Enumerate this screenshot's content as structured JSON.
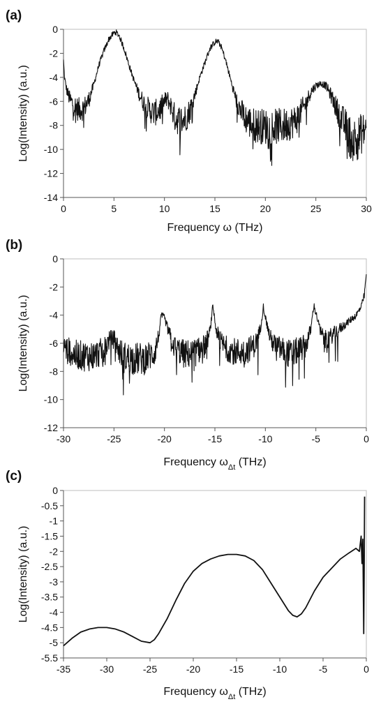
{
  "chart_data": [
    {
      "panel_label": "(a)",
      "type": "line",
      "xlabel": "Frequency ω (THz)",
      "ylabel": "Log(Intensity) (a.u.)",
      "xlim": [
        0,
        30
      ],
      "ylim": [
        -14,
        0
      ],
      "x_ticks": [
        0,
        5,
        10,
        15,
        20,
        25,
        30
      ],
      "y_ticks": [
        0,
        -2,
        -4,
        -6,
        -8,
        -10,
        -12,
        -14
      ],
      "x_tick_labels": [
        "0",
        "5",
        "10",
        "15",
        "20",
        "25",
        "30"
      ],
      "y_tick_labels": [
        "0",
        "-2",
        "-4",
        "-6",
        "-8",
        "-10",
        "-12",
        "-14"
      ],
      "grid": false,
      "noise": true,
      "series": [
        {
          "x": [
            0,
            0.1,
            0.3,
            0.6,
            1.0,
            1.5,
            2.0,
            2.5,
            3.0,
            3.5,
            4.0,
            4.5,
            5.0,
            5.2,
            5.5,
            6.0,
            6.5,
            7.0,
            7.5,
            8.0,
            8.5,
            9.0,
            9.5,
            10.0,
            10.3,
            10.6,
            11.0,
            11.5,
            12.0,
            12.5,
            13.0,
            13.5,
            14.0,
            14.5,
            15.0,
            15.3,
            15.6,
            16.0,
            16.5,
            17.0,
            17.5,
            18.0,
            18.5,
            19.0,
            20.0,
            21.0,
            22.0,
            23.0,
            24.0,
            24.5,
            25.0,
            25.5,
            26.0,
            26.5,
            27.0,
            27.5,
            28.0,
            28.5,
            29.0,
            29.5,
            30.0
          ],
          "y": [
            -2.6,
            -4.0,
            -5.0,
            -5.8,
            -6.3,
            -6.7,
            -6.6,
            -5.9,
            -4.6,
            -3.0,
            -1.8,
            -0.8,
            -0.3,
            -0.25,
            -0.5,
            -1.6,
            -3.0,
            -4.3,
            -5.4,
            -6.2,
            -6.7,
            -7.0,
            -6.7,
            -6.0,
            -5.8,
            -6.3,
            -7.3,
            -7.6,
            -7.5,
            -6.8,
            -5.5,
            -4.0,
            -2.8,
            -1.6,
            -1.05,
            -1.0,
            -1.4,
            -2.4,
            -4.0,
            -5.6,
            -6.7,
            -7.4,
            -7.8,
            -8.0,
            -8.1,
            -8.1,
            -8.0,
            -7.6,
            -6.2,
            -5.2,
            -4.7,
            -4.5,
            -4.7,
            -5.5,
            -6.5,
            -7.4,
            -8.2,
            -9.2,
            -9.2,
            -8.7,
            -8.3
          ]
        }
      ]
    },
    {
      "panel_label": "(b)",
      "type": "line",
      "xlabel": "Frequency ω",
      "xlabel_sub": "Δt",
      "xlabel_unit": " (THz)",
      "ylabel": "Log(Intensity) (a.u.)",
      "xlim": [
        -30,
        0
      ],
      "ylim": [
        -12,
        0
      ],
      "x_ticks": [
        -30,
        -25,
        -20,
        -15,
        -10,
        -5,
        0
      ],
      "y_ticks": [
        0,
        -2,
        -4,
        -6,
        -8,
        -10,
        -12
      ],
      "x_tick_labels": [
        "-30",
        "-25",
        "-20",
        "-15",
        "-10",
        "-5",
        "0"
      ],
      "y_tick_labels": [
        "0",
        "-2",
        "-4",
        "-6",
        "-8",
        "-10",
        "-12"
      ],
      "grid": false,
      "noise": true,
      "series": [
        {
          "x": [
            -30,
            -29.5,
            -29,
            -28,
            -27,
            -26,
            -25.5,
            -25,
            -24.5,
            -24,
            -23,
            -22,
            -21,
            -20.6,
            -20.3,
            -20,
            -19.5,
            -19,
            -18,
            -17,
            -16,
            -15.5,
            -15.2,
            -14.9,
            -14.5,
            -14,
            -13,
            -12,
            -11,
            -10.5,
            -10.2,
            -9.9,
            -9.5,
            -9,
            -8,
            -7.5,
            -7,
            -6,
            -5.5,
            -5.2,
            -4.9,
            -4.5,
            -4,
            -3,
            -2,
            -1,
            -0.5,
            -0.2,
            0
          ],
          "y": [
            -6.2,
            -6.5,
            -6.8,
            -6.9,
            -6.9,
            -6.5,
            -5.8,
            -5.7,
            -6.5,
            -7.0,
            -7.1,
            -7.1,
            -6.7,
            -5.6,
            -4.0,
            -4.2,
            -5.4,
            -6.3,
            -6.8,
            -6.7,
            -6.2,
            -5.3,
            -3.3,
            -5.0,
            -5.8,
            -6.3,
            -6.6,
            -6.6,
            -6.1,
            -5.0,
            -3.4,
            -4.5,
            -5.7,
            -6.2,
            -6.6,
            -6.8,
            -6.6,
            -6.2,
            -5.0,
            -3.3,
            -4.1,
            -5.3,
            -5.8,
            -5.2,
            -4.6,
            -4.0,
            -3.4,
            -2.6,
            -1.0
          ]
        }
      ]
    },
    {
      "panel_label": "(c)",
      "type": "line",
      "xlabel": "Frequency ω",
      "xlabel_sub": "Δt",
      "xlabel_unit": " (THz)",
      "ylabel": "Log(Intensity) (a.u.)",
      "xlim": [
        -35,
        0
      ],
      "ylim": [
        -5.5,
        0
      ],
      "x_ticks": [
        -35,
        -30,
        -25,
        -20,
        -15,
        -10,
        -5,
        0
      ],
      "y_ticks": [
        0,
        -0.5,
        -1,
        -1.5,
        -2,
        -2.5,
        -3,
        -3.5,
        -4,
        -4.5,
        -5,
        -5.5
      ],
      "x_tick_labels": [
        "-35",
        "-30",
        "-25",
        "-20",
        "-15",
        "-10",
        "-5",
        "0"
      ],
      "y_tick_labels": [
        "0",
        "-0.5",
        "-1",
        "-1.5",
        "-2",
        "-2.5",
        "-3",
        "-3.5",
        "-4",
        "-4.5",
        "-5",
        "-5.5"
      ],
      "grid": false,
      "noise": false,
      "series": [
        {
          "x": [
            -35,
            -34,
            -33,
            -32,
            -31,
            -30,
            -29,
            -28,
            -27,
            -26,
            -25,
            -24.5,
            -24,
            -23,
            -22,
            -21,
            -20,
            -19,
            -18,
            -17,
            -16,
            -15,
            -14,
            -13,
            -12,
            -11,
            -10,
            -9,
            -8.5,
            -8,
            -7.5,
            -7,
            -6,
            -5,
            -4,
            -3,
            -2,
            -1.2,
            -0.8,
            -0.6,
            -0.5,
            -0.4,
            -0.3,
            -0.25,
            -0.2
          ],
          "y": [
            -5.1,
            -4.85,
            -4.65,
            -4.55,
            -4.5,
            -4.5,
            -4.55,
            -4.65,
            -4.8,
            -4.95,
            -5.0,
            -4.9,
            -4.7,
            -4.2,
            -3.6,
            -3.05,
            -2.65,
            -2.4,
            -2.25,
            -2.15,
            -2.1,
            -2.1,
            -2.15,
            -2.3,
            -2.6,
            -3.05,
            -3.5,
            -3.95,
            -4.1,
            -4.15,
            -4.05,
            -3.85,
            -3.3,
            -2.85,
            -2.55,
            -2.25,
            -2.05,
            -1.9,
            -2.0,
            -1.5,
            -2.4,
            -1.6,
            -4.7,
            -2.8,
            -0.2
          ]
        }
      ]
    }
  ]
}
